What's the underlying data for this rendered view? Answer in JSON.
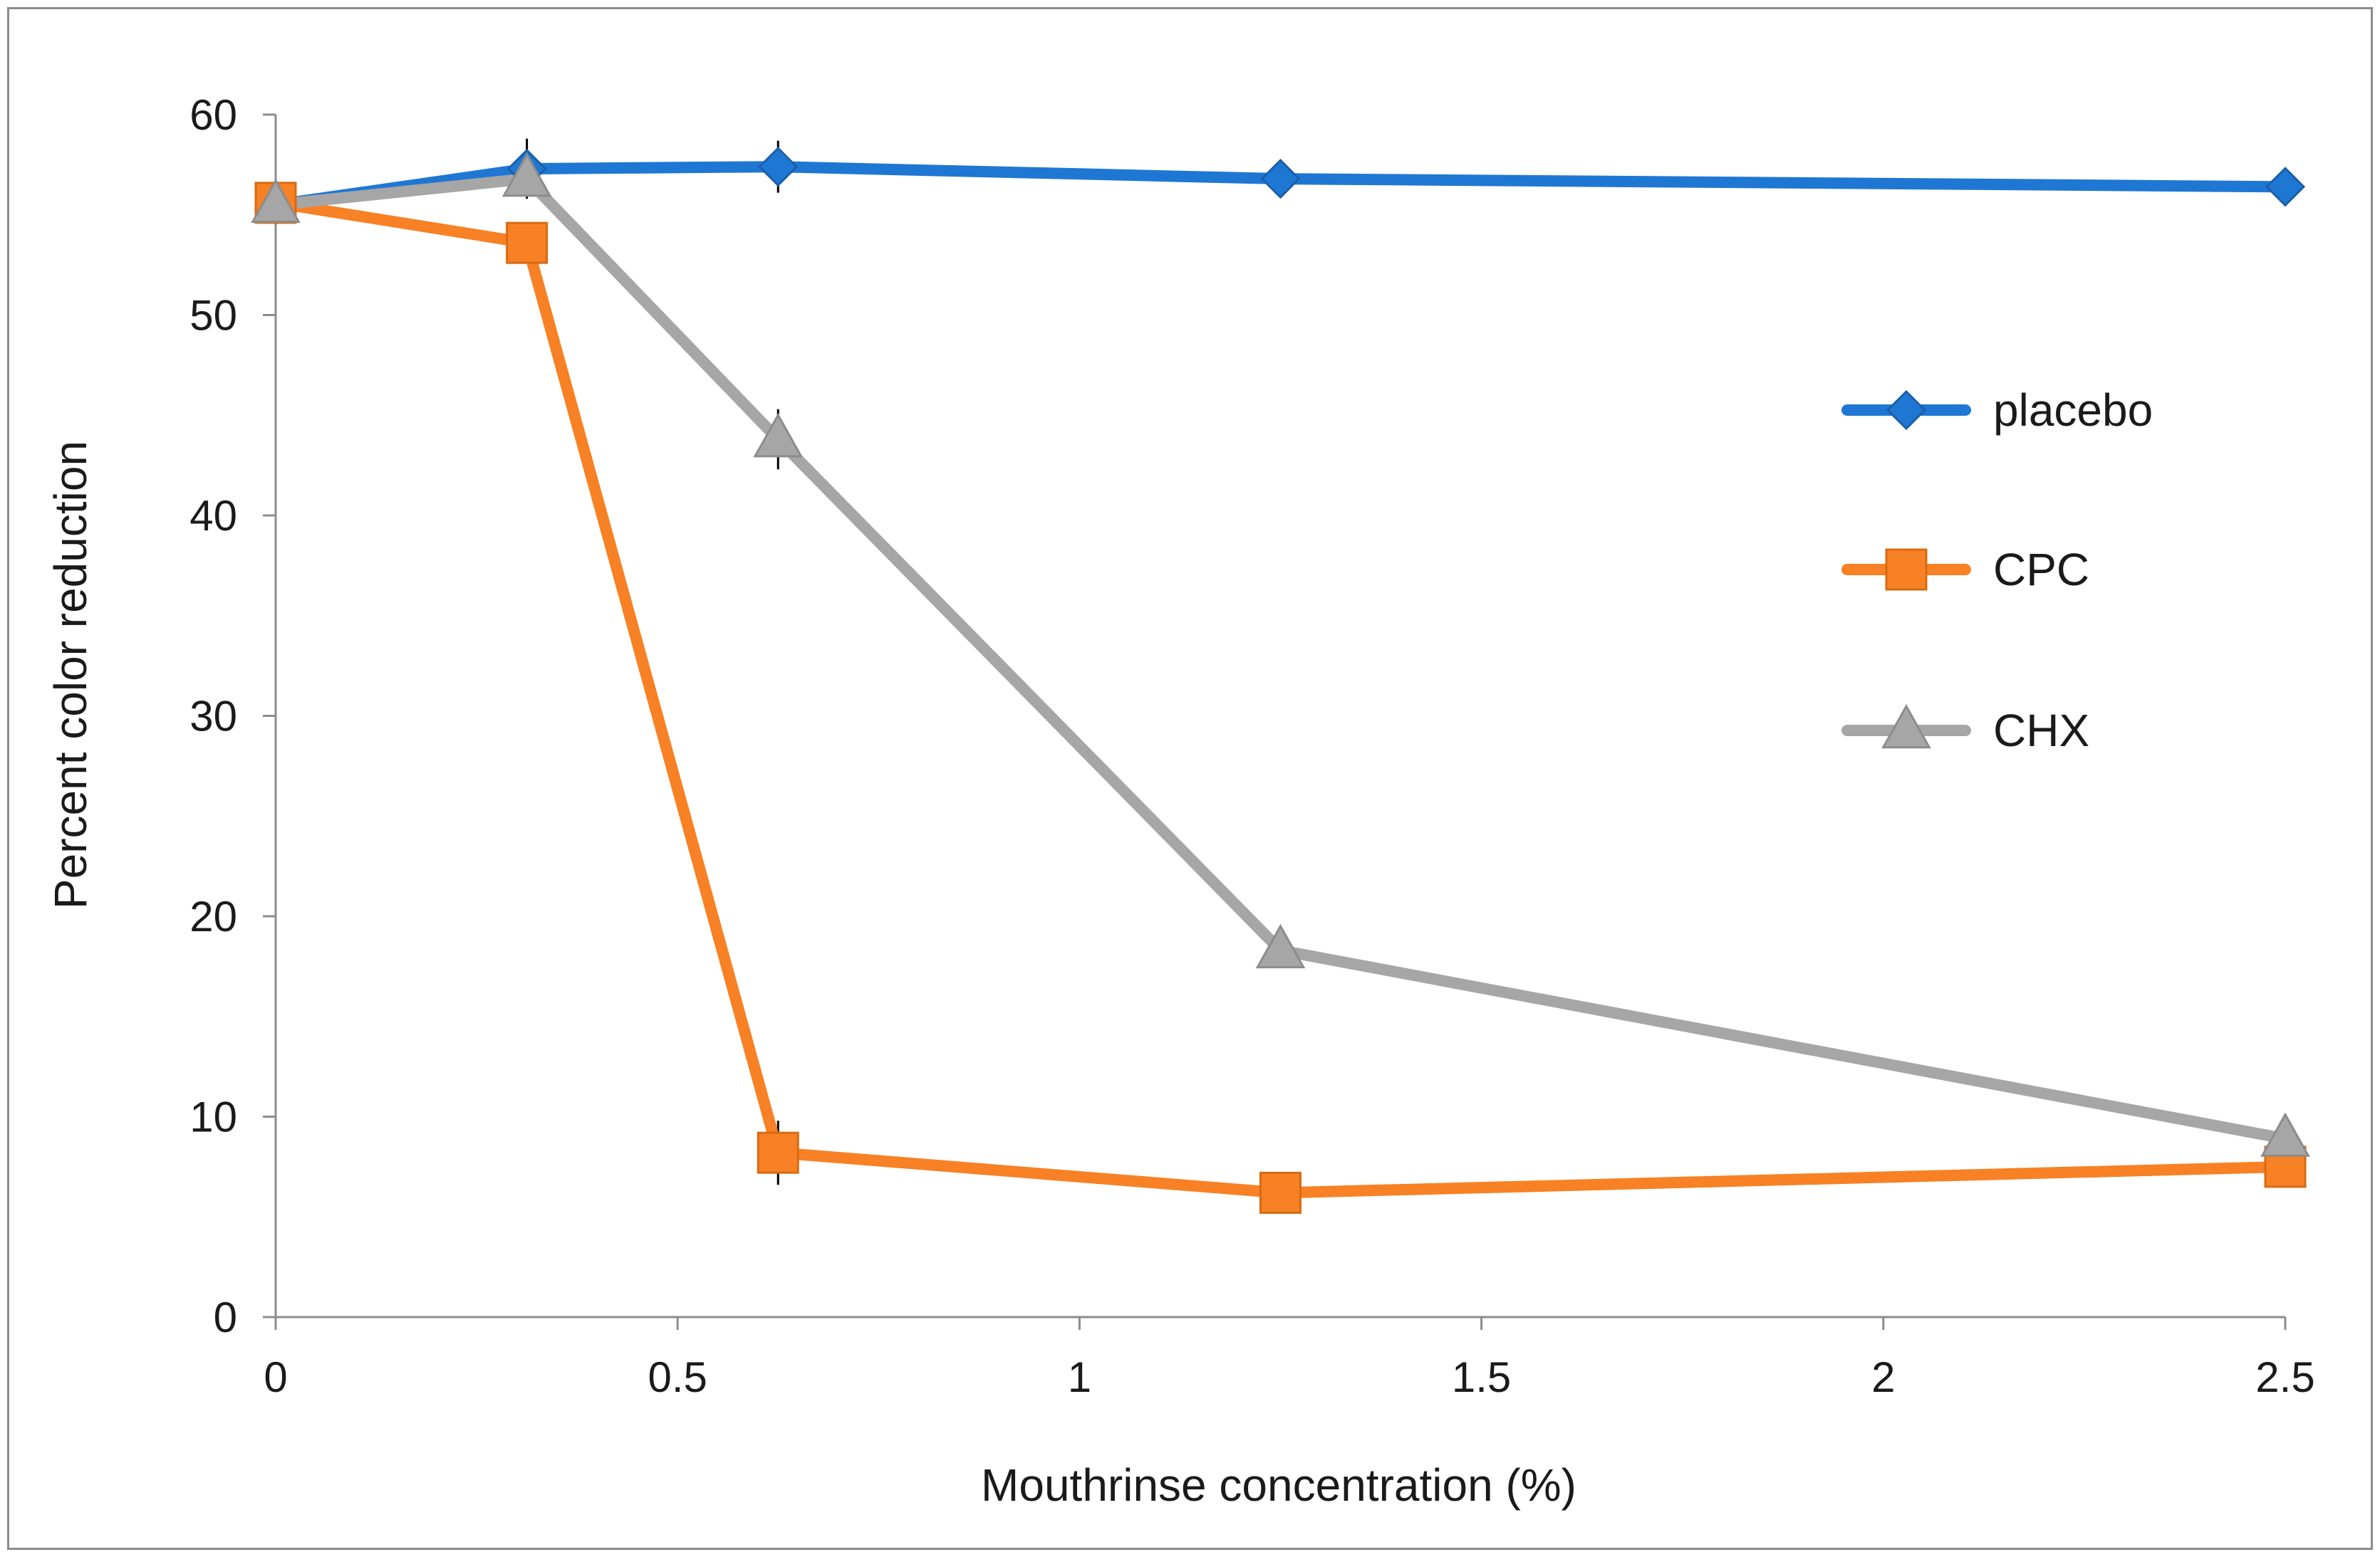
{
  "chart_data": {
    "type": "line",
    "title": "",
    "xlabel": "Mouthrinse concentration (%)",
    "ylabel": "Percent color reduction",
    "xlim": [
      0,
      2.5
    ],
    "ylim": [
      0,
      60
    ],
    "x_ticks": [
      0,
      0.5,
      1,
      1.5,
      2,
      2.5
    ],
    "x_tick_labels": [
      "0",
      "0.5",
      "1",
      "1.5",
      "2",
      "2.5"
    ],
    "y_ticks": [
      0,
      10,
      20,
      30,
      40,
      50,
      60
    ],
    "y_tick_labels": [
      "0",
      "10",
      "20",
      "30",
      "40",
      "50",
      "60"
    ],
    "grid": false,
    "legend_position": "right",
    "x": [
      0,
      0.3125,
      0.625,
      1.25,
      2.5
    ],
    "series": [
      {
        "name": "placebo",
        "marker": "diamond",
        "color": "#1f77d4",
        "values": [
          55.5,
          57.3,
          57.4,
          56.8,
          56.4
        ],
        "error_bars": [
          0.4,
          1.5,
          1.3,
          0.3,
          0.3
        ]
      },
      {
        "name": "CPC",
        "marker": "square",
        "color": "#f78124",
        "values": [
          55.6,
          53.6,
          8.2,
          6.2,
          7.5
        ],
        "error_bars": [
          0.4,
          0.6,
          1.6,
          0.3,
          0.3
        ]
      },
      {
        "name": "CHX",
        "marker": "triangle",
        "color": "#a6a6a6",
        "values": [
          55.5,
          56.8,
          43.8,
          18.3,
          8.9
        ],
        "error_bars": [
          0.4,
          0.8,
          1.5,
          0.3,
          0.3
        ]
      }
    ]
  }
}
